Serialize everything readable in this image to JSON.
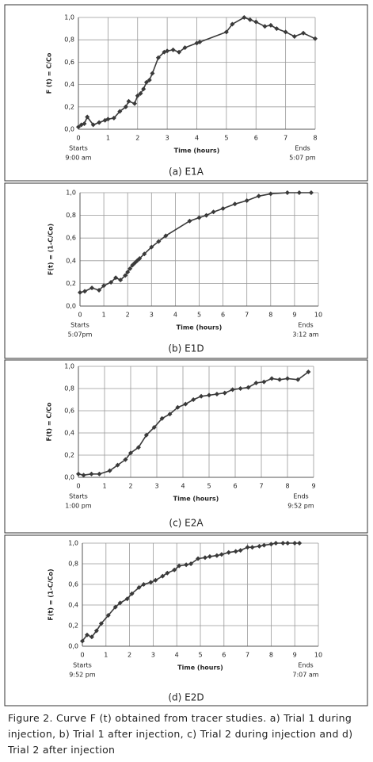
{
  "chart_data": [
    {
      "type": "line",
      "caption": "(a) E1A",
      "x_label": "Time (hours)",
      "y_label": "F (t) = C/Co",
      "start": "Starts",
      "start_time": "9:00 am",
      "end": "Ends",
      "end_time": "5:07 pm",
      "color": "#3a3a3a",
      "grid": true,
      "x": [
        0,
        0.1,
        0.2,
        0.3,
        0.5,
        0.7,
        0.9,
        1.0,
        1.2,
        1.4,
        1.6,
        1.7,
        1.9,
        2.0,
        2.1,
        2.2,
        2.3,
        2.4,
        2.5,
        2.7,
        2.9,
        3.0,
        3.2,
        3.4,
        3.6,
        4.0,
        4.1,
        5.0,
        5.2,
        5.6,
        5.8,
        6.0,
        6.3,
        6.5,
        6.7,
        7.0,
        7.3,
        7.6,
        8.0
      ],
      "values": [
        0.02,
        0.04,
        0.05,
        0.11,
        0.04,
        0.06,
        0.08,
        0.09,
        0.1,
        0.16,
        0.2,
        0.25,
        0.23,
        0.3,
        0.32,
        0.36,
        0.42,
        0.44,
        0.5,
        0.64,
        0.69,
        0.7,
        0.71,
        0.69,
        0.73,
        0.77,
        0.78,
        0.87,
        0.94,
        1.0,
        0.98,
        0.96,
        0.92,
        0.93,
        0.9,
        0.87,
        0.83,
        0.86,
        0.81
      ],
      "xlim": [
        0,
        8
      ],
      "xticks": [
        0,
        1,
        2,
        3,
        4,
        5,
        6,
        7,
        8
      ],
      "ylim": [
        0,
        1
      ],
      "yticks": [
        {
          "value": 0,
          "label": "0,0"
        },
        {
          "value": 0.2,
          "label": "0,2"
        },
        {
          "value": 0.4,
          "label": "0,4"
        },
        {
          "value": 0.6,
          "label": "0,6"
        },
        {
          "value": 0.8,
          "label": "0,8"
        },
        {
          "value": 1,
          "label": "1,0"
        }
      ]
    },
    {
      "type": "line",
      "caption": "(b) E1D",
      "x_label": "Time (hours)",
      "y_label": "F(t) = (1-C/Co)",
      "start": "Starts",
      "start_time": "5:07pm",
      "end": "Ends",
      "end_time": "3:12 am",
      "color": "#3a3a3a",
      "grid": true,
      "x": [
        0,
        0.2,
        0.5,
        0.8,
        1.0,
        1.3,
        1.5,
        1.7,
        1.9,
        2.0,
        2.1,
        2.2,
        2.3,
        2.4,
        2.5,
        2.7,
        3.0,
        3.3,
        3.6,
        4.6,
        5.0,
        5.3,
        5.6,
        6.0,
        6.5,
        7.0,
        7.5,
        8.0,
        8.7,
        9.2,
        9.7
      ],
      "values": [
        0.12,
        0.13,
        0.16,
        0.14,
        0.18,
        0.21,
        0.25,
        0.23,
        0.27,
        0.3,
        0.33,
        0.36,
        0.38,
        0.4,
        0.42,
        0.46,
        0.52,
        0.57,
        0.62,
        0.75,
        0.78,
        0.8,
        0.83,
        0.86,
        0.9,
        0.93,
        0.97,
        0.99,
        1.0,
        1.0,
        1.0
      ],
      "xlim": [
        0,
        10
      ],
      "xticks": [
        0,
        1,
        2,
        3,
        4,
        5,
        6,
        7,
        8,
        9,
        10
      ],
      "ylim": [
        0,
        1
      ],
      "yticks": [
        {
          "value": 0,
          "label": "0,0"
        },
        {
          "value": 0.2,
          "label": "0,2"
        },
        {
          "value": 0.4,
          "label": "0,4"
        },
        {
          "value": 0.6,
          "label": "0,6"
        },
        {
          "value": 0.8,
          "label": "0,8"
        },
        {
          "value": 1,
          "label": "1,0"
        }
      ]
    },
    {
      "type": "line",
      "caption": "(c) E2A",
      "x_label": "Time (hours)",
      "y_label": "F(t) = C/Co",
      "start": "Starts",
      "start_time": "1:00 pm",
      "end": "Ends",
      "end_time": "9:52 pm",
      "color": "#3a3a3a",
      "grid": true,
      "x": [
        0,
        0.2,
        0.5,
        0.8,
        1.2,
        1.5,
        1.8,
        2.0,
        2.3,
        2.6,
        2.9,
        3.2,
        3.5,
        3.8,
        4.1,
        4.4,
        4.7,
        5.0,
        5.3,
        5.6,
        5.9,
        6.2,
        6.5,
        6.8,
        7.1,
        7.4,
        7.7,
        8.0,
        8.4,
        8.8
      ],
      "values": [
        0.03,
        0.02,
        0.03,
        0.03,
        0.06,
        0.11,
        0.16,
        0.22,
        0.27,
        0.38,
        0.45,
        0.53,
        0.57,
        0.63,
        0.66,
        0.7,
        0.73,
        0.74,
        0.75,
        0.76,
        0.79,
        0.8,
        0.81,
        0.85,
        0.86,
        0.89,
        0.88,
        0.89,
        0.88,
        0.95
      ],
      "xlim": [
        0,
        9
      ],
      "xticks": [
        0,
        1,
        2,
        3,
        4,
        5,
        6,
        7,
        8,
        9
      ],
      "ylim": [
        0,
        1
      ],
      "yticks": [
        {
          "value": 0,
          "label": "0,0"
        },
        {
          "value": 0.2,
          "label": "0,2"
        },
        {
          "value": 0.4,
          "label": "0,4"
        },
        {
          "value": 0.6,
          "label": "0,6"
        },
        {
          "value": 0.8,
          "label": "0,8"
        },
        {
          "value": 1,
          "label": "1,0"
        }
      ]
    },
    {
      "type": "line",
      "caption": "(d) E2D",
      "x_label": "Time (hours)",
      "y_label": "F(t) = (1-C/Co)",
      "start": "Starts",
      "start_time": "9:52 pm",
      "end": "Ends",
      "end_time": "7:07 am",
      "color": "#3a3a3a",
      "grid": true,
      "x": [
        0,
        0.2,
        0.4,
        0.6,
        0.8,
        1.1,
        1.4,
        1.6,
        1.9,
        2.1,
        2.4,
        2.6,
        2.9,
        3.1,
        3.4,
        3.6,
        3.9,
        4.1,
        4.4,
        4.6,
        4.9,
        5.2,
        5.4,
        5.7,
        5.9,
        6.2,
        6.5,
        6.7,
        7.0,
        7.2,
        7.5,
        7.7,
        8.0,
        8.2,
        8.5,
        8.7,
        9.0,
        9.2
      ],
      "values": [
        0.05,
        0.11,
        0.09,
        0.15,
        0.22,
        0.3,
        0.38,
        0.42,
        0.46,
        0.51,
        0.57,
        0.6,
        0.62,
        0.64,
        0.68,
        0.71,
        0.74,
        0.78,
        0.79,
        0.8,
        0.85,
        0.86,
        0.87,
        0.88,
        0.89,
        0.91,
        0.92,
        0.93,
        0.96,
        0.96,
        0.97,
        0.98,
        0.99,
        1.0,
        1.0,
        1.0,
        1.0,
        1.0
      ],
      "xlim": [
        0,
        10
      ],
      "xticks": [
        0,
        1,
        2,
        3,
        4,
        5,
        6,
        7,
        8,
        9,
        10
      ],
      "ylim": [
        0,
        1
      ],
      "yticks": [
        {
          "value": 0,
          "label": "0,0"
        },
        {
          "value": 0.2,
          "label": "0,2"
        },
        {
          "value": 0.4,
          "label": "0,4"
        },
        {
          "value": 0.6,
          "label": "0,6"
        },
        {
          "value": 0.8,
          "label": "0,8"
        },
        {
          "value": 1,
          "label": "1,0"
        }
      ]
    }
  ],
  "figure_caption": "Figure 2. Curve F (t) obtained from tracer studies. a) Trial 1 during injection, b) Trial 1 after injection, c) Trial 2 during injection and d) Trial 2 after injection"
}
